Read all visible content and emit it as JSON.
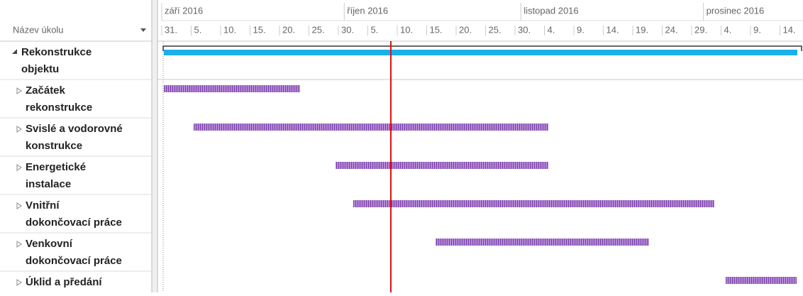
{
  "header": {
    "column_title": "Název úkolu",
    "months": [
      "září 2016",
      "říjen 2016",
      "listopad 2016",
      "prosinec 2016"
    ],
    "days": [
      "31.",
      "5.",
      "10.",
      "15.",
      "20.",
      "25.",
      "30.",
      "5.",
      "10.",
      "15.",
      "20.",
      "25.",
      "30.",
      "4.",
      "9.",
      "14.",
      "19.",
      "24.",
      "29.",
      "4.",
      "9.",
      "14."
    ]
  },
  "tasks": [
    {
      "name": [
        "Rekonstrukce",
        "objektu"
      ]
    },
    {
      "name": [
        "Začátek",
        "rekonstrukce"
      ]
    },
    {
      "name": [
        "Svislé a vodorovné",
        "konstrukce"
      ]
    },
    {
      "name": [
        "Energetické",
        "instalace"
      ]
    },
    {
      "name": [
        "Vnitřní",
        "dokončovací práce"
      ]
    },
    {
      "name": [
        "Venkovní",
        "dokončovací práce"
      ]
    },
    {
      "name": [
        "Úklid a předání"
      ]
    }
  ]
}
